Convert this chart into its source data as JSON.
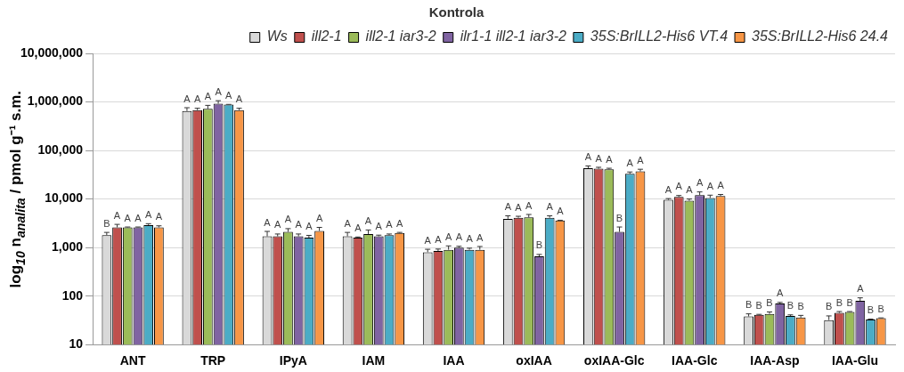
{
  "chart_data": {
    "type": "bar",
    "title": "Kontrola",
    "ylabel": "log$_{10}$ n$_{analita}$ / pmol g⁻¹ s.m.",
    "categories": [
      "ANT",
      "TRP",
      "IPyA",
      "IAM",
      "IAA",
      "oxIAA",
      "oxIAA-Glc",
      "IAA-Glc",
      "IAA-Asp",
      "IAA-Glu"
    ],
    "log": "y",
    "ylim": [
      10,
      10000000
    ],
    "yticks": [
      {
        "value": 10,
        "label": "10"
      },
      {
        "value": 100,
        "label": "100"
      },
      {
        "value": 1000,
        "label": "1,000"
      },
      {
        "value": 10000,
        "label": "10,000"
      },
      {
        "value": 100000,
        "label": "100,000"
      },
      {
        "value": 1000000,
        "label": "1,000,000"
      },
      {
        "value": 10000000,
        "label": "10,000,000"
      }
    ],
    "grid": "y",
    "legend": "top right",
    "series": [
      {
        "name": "Ws",
        "color": "#d9d9d9",
        "values": [
          1800,
          650000,
          1700,
          1700,
          800,
          3900,
          43000,
          9600,
          38,
          32
        ],
        "errors": [
          [
            1800,
            2050
          ],
          [
            650000,
            760000
          ],
          [
            1700,
            2150
          ],
          [
            1700,
            2050
          ],
          [
            800,
            920
          ],
          [
            3900,
            4500
          ],
          [
            43000,
            48000
          ],
          [
            9600,
            10200
          ],
          [
            38,
            43
          ],
          [
            32,
            39
          ]
        ],
        "value_labels": [
          "B",
          "A",
          "A",
          "A",
          "A",
          "A",
          "A",
          "A",
          "B",
          "B"
        ]
      },
      {
        "name": "ill2-1",
        "color": "#c0504d",
        "values": [
          2600,
          680000,
          1700,
          1600,
          850,
          4100,
          42000,
          11000,
          41,
          45
        ],
        "errors": [
          [
            2600,
            3000
          ],
          [
            680000,
            740000
          ],
          [
            1700,
            1900
          ],
          [
            1600,
            1650
          ],
          [
            850,
            930
          ],
          [
            4100,
            4400
          ],
          [
            42000,
            45000
          ],
          [
            11000,
            11800
          ],
          [
            41,
            42
          ],
          [
            45,
            48
          ]
        ],
        "value_labels": [
          "A",
          "A",
          "A",
          "A",
          "A",
          "A",
          "A",
          "A",
          "B",
          "B"
        ]
      },
      {
        "name": "ill2-1 iar3-2",
        "color": "#9bbb59",
        "values": [
          2600,
          720000,
          2100,
          1900,
          900,
          4200,
          41000,
          9200,
          43,
          47
        ],
        "errors": [
          [
            2600,
            2650
          ],
          [
            720000,
            850000
          ],
          [
            2100,
            2450
          ],
          [
            1900,
            2300
          ],
          [
            900,
            1080
          ],
          [
            4200,
            4800
          ],
          [
            41000,
            43000
          ],
          [
            9200,
            10000
          ],
          [
            43,
            47
          ],
          [
            47,
            48
          ]
        ],
        "value_labels": [
          "A",
          "A",
          "A",
          "A",
          "A",
          "A",
          "A",
          "A",
          "B",
          "B"
        ]
      },
      {
        "name": "ilr1-1 ill2-1 iar3-2",
        "color": "#8064a2",
        "values": [
          2600,
          920000,
          1700,
          1700,
          1000,
          660,
          2100,
          12000,
          70,
          80
        ],
        "errors": [
          [
            2600,
            2650
          ],
          [
            920000,
            1060000
          ],
          [
            1700,
            1900
          ],
          [
            1700,
            1800
          ],
          [
            1000,
            1060
          ],
          [
            660,
            720
          ],
          [
            2100,
            2650
          ],
          [
            12000,
            14000
          ],
          [
            70,
            74
          ],
          [
            80,
            92
          ]
        ],
        "value_labels": [
          "A",
          "A",
          "A",
          "A",
          "A",
          "B",
          "B",
          "A",
          "A",
          "A"
        ]
      },
      {
        "name": "35S:BrILL2-His6 VT.4",
        "color": "#4bacc6",
        "values": [
          2900,
          880000,
          1600,
          1800,
          900,
          4100,
          33000,
          10500,
          39,
          33
        ],
        "errors": [
          [
            2900,
            3100
          ],
          [
            880000,
            890000
          ],
          [
            1600,
            1780
          ],
          [
            1800,
            1900
          ],
          [
            900,
            970
          ],
          [
            4100,
            4500
          ],
          [
            33000,
            36000
          ],
          [
            10500,
            12000
          ],
          [
            39,
            41
          ],
          [
            33,
            33.5
          ]
        ],
        "value_labels": [
          "A",
          "A",
          "A",
          "A",
          "A",
          "A",
          "A",
          "A",
          "B",
          "B"
        ]
      },
      {
        "name": "35S:BrILL2-His6 24.4",
        "color": "#f79646",
        "values": [
          2600,
          680000,
          2200,
          2000,
          900,
          3600,
          37000,
          11500,
          36,
          35
        ],
        "errors": [
          [
            2600,
            2800
          ],
          [
            680000,
            740000
          ],
          [
            2200,
            2600
          ],
          [
            2000,
            2050
          ],
          [
            900,
            1050
          ],
          [
            3600,
            3650
          ],
          [
            37000,
            41000
          ],
          [
            11500,
            12400
          ],
          [
            36,
            40
          ],
          [
            35,
            35.5
          ]
        ],
        "value_labels": [
          "A",
          "A",
          "A",
          "A",
          "A",
          "A",
          "A",
          "A",
          "B",
          "B"
        ]
      }
    ]
  }
}
